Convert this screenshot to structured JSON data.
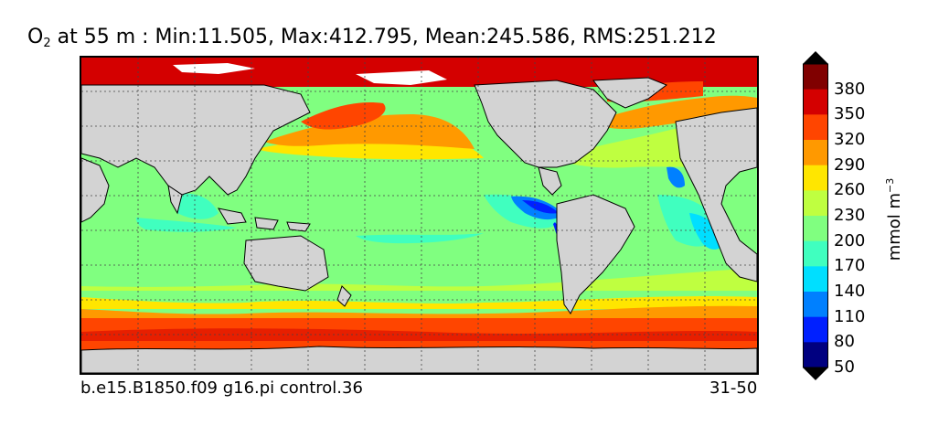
{
  "title": {
    "species": "O",
    "subscript": "2",
    "text": " at 55 m : Min:11.505, Max:412.795, Mean:245.586, RMS:251.212"
  },
  "footer": {
    "case_name": "b.e15.B1850.f09 g16.pi control.36",
    "years": "31-50"
  },
  "colorbar": {
    "units_prefix": "mmol m",
    "units_exponent": "−3",
    "tick_labels": [
      "380",
      "350",
      "320",
      "290",
      "260",
      "230",
      "200",
      "170",
      "140",
      "110",
      "80",
      "50"
    ],
    "colors_top_to_bottom": [
      "#800000",
      "#d40000",
      "#ff4500",
      "#ff9900",
      "#ffe600",
      "#bfff40",
      "#80ff80",
      "#40ffbf",
      "#00dfff",
      "#0080ff",
      "#0020ff",
      "#000080"
    ],
    "extend": "both"
  },
  "map": {
    "land_color": "#d3d3d3",
    "sea_ice_color": "#ffffff",
    "gridlines": "dotted",
    "contour_lines": "black"
  }
}
